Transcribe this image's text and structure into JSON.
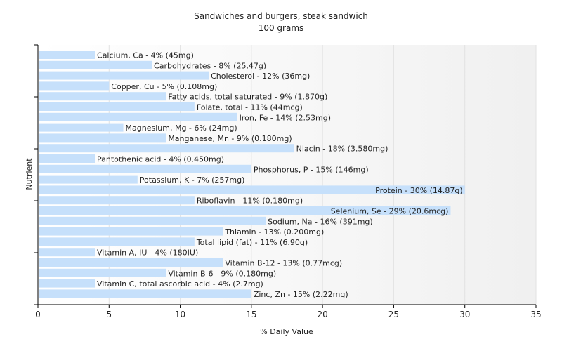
{
  "chart_data": {
    "type": "bar",
    "orientation": "horizontal",
    "title": "Sandwiches and burgers, steak sandwich",
    "subtitle": "100 grams",
    "xlabel": "% Daily Value",
    "ylabel": "Nutrient",
    "xlim": [
      0,
      35
    ],
    "xticks": [
      0,
      5,
      10,
      15,
      20,
      25,
      30,
      35
    ],
    "grid": "vertical",
    "bar_color": "#c6e0fb",
    "categories": [
      "Calcium, Ca",
      "Carbohydrates",
      "Cholesterol",
      "Copper, Cu",
      "Fatty acids, total saturated",
      "Folate, total",
      "Iron, Fe",
      "Magnesium, Mg",
      "Manganese, Mn",
      "Niacin",
      "Pantothenic acid",
      "Phosphorus, P",
      "Potassium, K",
      "Protein",
      "Riboflavin",
      "Selenium, Se",
      "Sodium, Na",
      "Thiamin",
      "Total lipid (fat)",
      "Vitamin A, IU",
      "Vitamin B-12",
      "Vitamin B-6",
      "Vitamin C, total ascorbic acid",
      "Zinc, Zn"
    ],
    "values": [
      4,
      8,
      12,
      5,
      9,
      11,
      14,
      6,
      9,
      18,
      4,
      15,
      7,
      30,
      11,
      29,
      16,
      13,
      11,
      4,
      13,
      9,
      4,
      15
    ],
    "labels": [
      "Calcium, Ca - 4% (45mg)",
      "Carbohydrates - 8% (25.47g)",
      "Cholesterol - 12% (36mg)",
      "Copper, Cu - 5% (0.108mg)",
      "Fatty acids, total saturated - 9% (1.870g)",
      "Folate, total - 11% (44mcg)",
      "Iron, Fe - 14% (2.53mg)",
      "Magnesium, Mg - 6% (24mg)",
      "Manganese, Mn - 9% (0.180mg)",
      "Niacin - 18% (3.580mg)",
      "Pantothenic acid - 4% (0.450mg)",
      "Phosphorus, P - 15% (146mg)",
      "Potassium, K - 7% (257mg)",
      "Protein - 30% (14.87g)",
      "Riboflavin - 11% (0.180mg)",
      "Selenium, Se - 29% (20.6mcg)",
      "Sodium, Na - 16% (391mg)",
      "Thiamin - 13% (0.200mg)",
      "Total lipid (fat) - 11% (6.90g)",
      "Vitamin A, IU - 4% (180IU)",
      "Vitamin B-12 - 13% (0.77mcg)",
      "Vitamin B-6 - 9% (0.180mg)",
      "Vitamin C, total ascorbic acid - 4% (2.7mg)",
      "Zinc, Zn - 15% (2.22mg)"
    ]
  }
}
